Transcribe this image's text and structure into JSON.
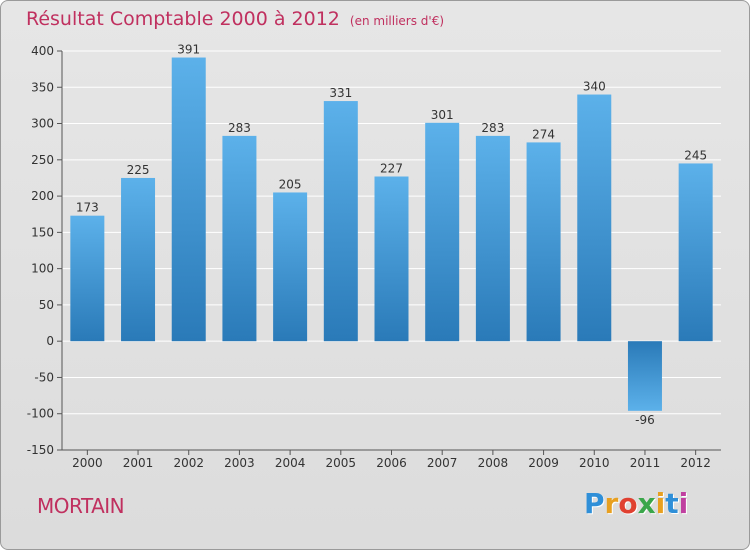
{
  "header": {
    "title": "Résultat Comptable 2000 à 2012",
    "subtitle": "(en milliers d'€)"
  },
  "footer": {
    "place": "MORTAIN",
    "logo_letters": [
      "P",
      "r",
      "o",
      "x",
      "i",
      "t",
      "i"
    ],
    "logo_colors": [
      "#2f8fd8",
      "#e8a020",
      "#e04030",
      "#3aa64a",
      "#e8a020",
      "#2f8fd8",
      "#c040a0"
    ]
  },
  "colors": {
    "title": "#c0305f",
    "bar_top": "#5cb1ea",
    "bar_bottom": "#2a7ab8",
    "grid": "#ffffff",
    "axis": "#555555",
    "text": "#333333"
  },
  "chart_data": {
    "type": "bar",
    "title": "Résultat Comptable 2000 à 2012",
    "ylabel": "en milliers d'€",
    "xlabel": "",
    "categories": [
      "2000",
      "2001",
      "2002",
      "2003",
      "2004",
      "2005",
      "2006",
      "2007",
      "2008",
      "2009",
      "2010",
      "2011",
      "2012"
    ],
    "values": [
      173,
      225,
      391,
      283,
      205,
      331,
      227,
      301,
      283,
      274,
      340,
      -96,
      245
    ],
    "ylim": [
      -150,
      400
    ],
    "yticks": [
      -150,
      -100,
      -50,
      0,
      50,
      100,
      150,
      200,
      250,
      300,
      350,
      400
    ],
    "grid": true
  }
}
